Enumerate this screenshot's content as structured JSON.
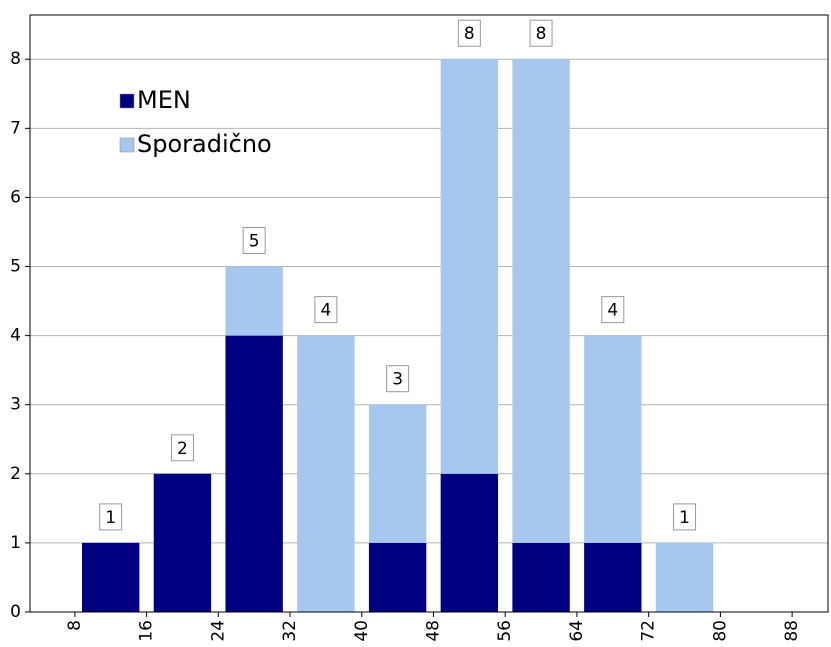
{
  "chart_data": {
    "type": "histogram",
    "bins": [
      8,
      16,
      24,
      32,
      40,
      48,
      56,
      64,
      72,
      80,
      88
    ],
    "series": [
      {
        "name": "MEN",
        "color": "#000080",
        "values": [
          1,
          2,
          4,
          0,
          1,
          2,
          1,
          1,
          0,
          0
        ]
      },
      {
        "name": "Sporadično",
        "color": "#a6c8ee",
        "values": [
          0,
          0,
          1,
          4,
          2,
          6,
          7,
          3,
          1,
          0
        ]
      }
    ],
    "totals": [
      1,
      2,
      5,
      4,
      3,
      8,
      8,
      4,
      1,
      null
    ],
    "stacked": true,
    "xlim": [
      3,
      92
    ],
    "xticks": [
      8,
      16,
      24,
      32,
      40,
      48,
      56,
      64,
      72,
      80,
      88
    ],
    "ylim": [
      0,
      8.64
    ],
    "yticks": [
      0,
      1,
      2,
      3,
      4,
      5,
      6,
      7,
      8
    ],
    "grid": true,
    "legend": "upper left"
  }
}
